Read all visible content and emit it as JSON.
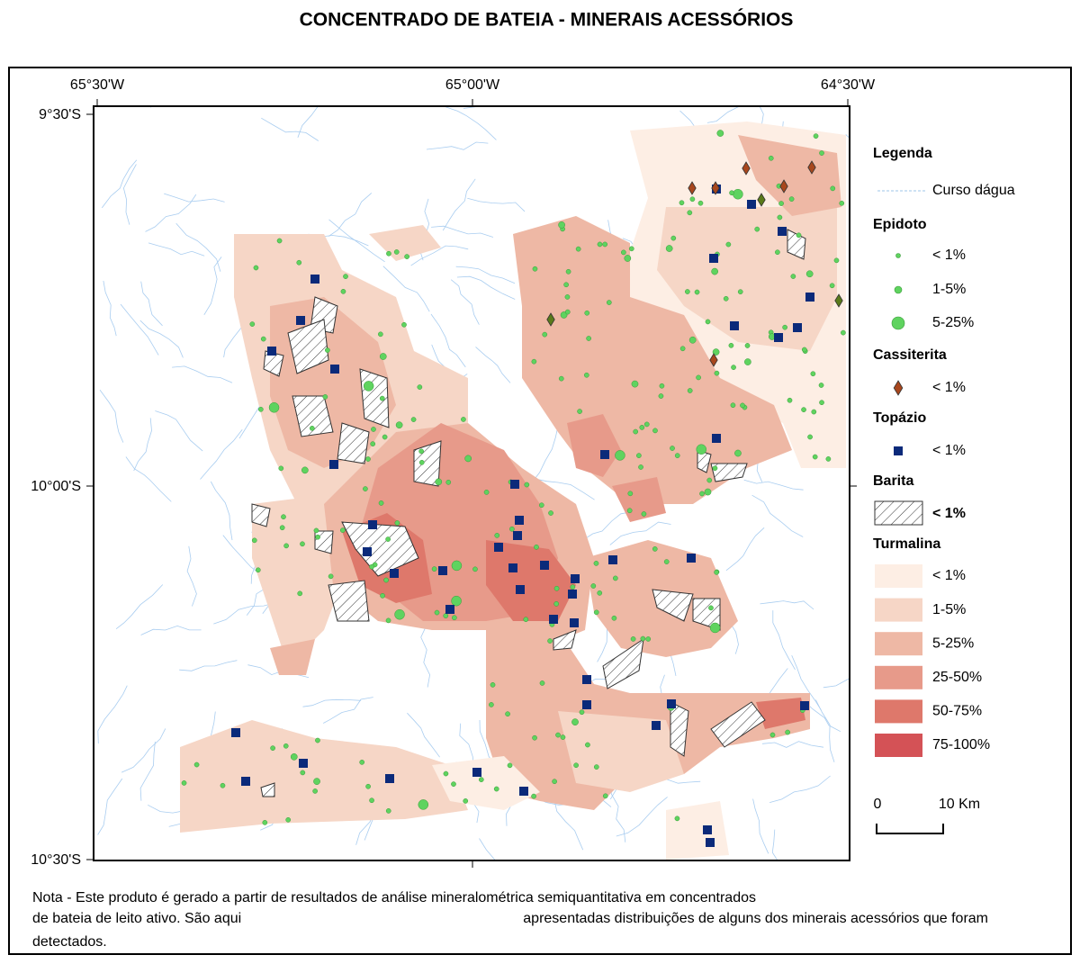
{
  "title": "CONCENTRADO DE BATEIA - MINERAIS ACESSÓRIOS",
  "coordinates": {
    "longitude": [
      "65°30'W",
      "65°00'W",
      "64°30'W"
    ],
    "latitude": [
      "9°30'S",
      "10°00'S",
      "10°30'S"
    ]
  },
  "legend": {
    "title": "Legenda",
    "river": "Curso dágua",
    "epidoto": {
      "name": "Epidoto",
      "classes": [
        "< 1%",
        "1-5%",
        "5-25%"
      ],
      "color": "#5fd35f"
    },
    "cassiterita": {
      "name": "Cassiterita",
      "classes": [
        "< 1%"
      ],
      "color": "#a8471d"
    },
    "topazio": {
      "name": "Topázio",
      "classes": [
        "< 1%"
      ],
      "color": "#0b2a7a"
    },
    "barita": {
      "name": "Barita",
      "classes": [
        "< 1%"
      ]
    },
    "turmalina": {
      "name": "Turmalina",
      "classes": [
        "< 1%",
        "1-5%",
        "5-25%",
        "25-50%",
        "50-75%",
        "75-100%"
      ],
      "colors": [
        "#fdeee4",
        "#f6d6c6",
        "#eeb8a5",
        "#e79a8a",
        "#de786b",
        "#d45256"
      ]
    }
  },
  "scale_bar": {
    "start": "0",
    "end": "10 Km"
  },
  "note": [
    "Nota - Este produto é gerado a partir de resultados de análise mineralométrica semiquantitativa em concentrados",
    "de bateia de leito ativo. São aqui",
    "apresentadas distribuições de alguns dos minerais acessórios que foram",
    "detectados."
  ]
}
